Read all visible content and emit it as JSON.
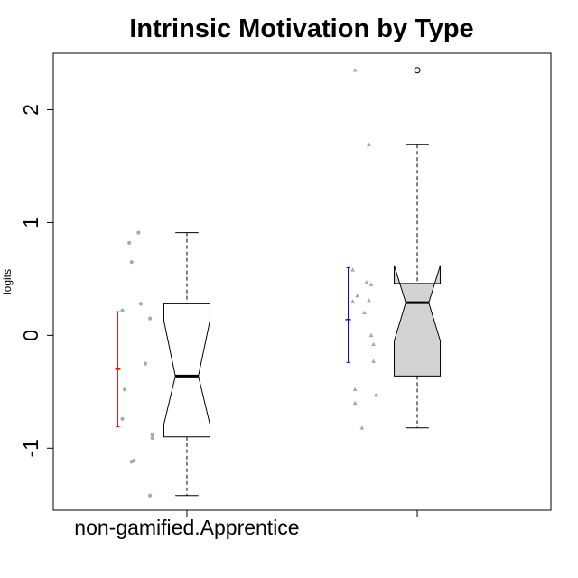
{
  "chart_data": {
    "type": "boxplot",
    "title": "Intrinsic Motivation by Type",
    "xlabel": "",
    "ylabel": "logits",
    "ylim": [
      -1.55,
      2.5
    ],
    "yticks": [
      -1,
      0,
      1,
      2
    ],
    "categories": [
      "non-gamified.Apprentice",
      ""
    ],
    "notched": true,
    "grid": false,
    "boxes": [
      {
        "name": "non-gamified.Apprentice",
        "fill": "#ffffff",
        "whisker_low": -1.42,
        "q1": -0.9,
        "median": -0.36,
        "q3": 0.28,
        "whisker_high": 0.91,
        "notch_low": -0.79,
        "notch_high": 0.13,
        "outliers": []
      },
      {
        "name": "",
        "fill": "#d3d3d3",
        "whisker_low": -0.82,
        "q1": -0.36,
        "median": 0.29,
        "q3": 0.46,
        "whisker_high": 1.69,
        "notch_low": -0.05,
        "notch_high": 0.62,
        "outliers": [
          2.35
        ]
      }
    ],
    "error_bars": [
      {
        "box": 0,
        "mean": -0.3,
        "low": -0.81,
        "high": 0.21,
        "color": "#ff0000"
      },
      {
        "box": 1,
        "mean": 0.14,
        "low": -0.24,
        "high": 0.6,
        "color": "#0000ff"
      }
    ],
    "jitter_points": [
      {
        "box": 0,
        "shape": "circle",
        "color": "#a9a9a9",
        "points": [
          {
            "dx": -0.28,
            "y": 0.22
          },
          {
            "dx": -0.28,
            "y": -0.74
          },
          {
            "dx": -0.27,
            "y": -0.48
          },
          {
            "dx": -0.25,
            "y": 0.82
          },
          {
            "dx": -0.24,
            "y": 0.65
          },
          {
            "dx": -0.24,
            "y": -1.12
          },
          {
            "dx": -0.23,
            "y": -1.11
          },
          {
            "dx": -0.21,
            "y": 0.91
          },
          {
            "dx": -0.2,
            "y": 0.28
          },
          {
            "dx": -0.18,
            "y": -0.25
          },
          {
            "dx": -0.16,
            "y": 0.15
          },
          {
            "dx": -0.15,
            "y": -0.88
          },
          {
            "dx": -0.15,
            "y": -0.91
          },
          {
            "dx": -0.16,
            "y": -1.42
          }
        ]
      },
      {
        "box": 1,
        "shape": "triangle",
        "color": "#a9a9a9",
        "points": [
          {
            "dx": -0.27,
            "y": 2.35
          },
          {
            "dx": -0.28,
            "y": 0.58
          },
          {
            "dx": -0.28,
            "y": 0.3
          },
          {
            "dx": -0.26,
            "y": 0.35
          },
          {
            "dx": -0.27,
            "y": -0.48
          },
          {
            "dx": -0.27,
            "y": -0.6
          },
          {
            "dx": -0.23,
            "y": 0.2
          },
          {
            "dx": -0.24,
            "y": -0.82
          },
          {
            "dx": -0.21,
            "y": 1.69
          },
          {
            "dx": -0.22,
            "y": 0.47
          },
          {
            "dx": -0.2,
            "y": 0.45
          },
          {
            "dx": -0.21,
            "y": 0.31
          },
          {
            "dx": -0.2,
            "y": 0.0
          },
          {
            "dx": -0.19,
            "y": -0.08
          },
          {
            "dx": -0.19,
            "y": -0.23
          },
          {
            "dx": -0.18,
            "y": -0.53
          }
        ]
      }
    ]
  }
}
